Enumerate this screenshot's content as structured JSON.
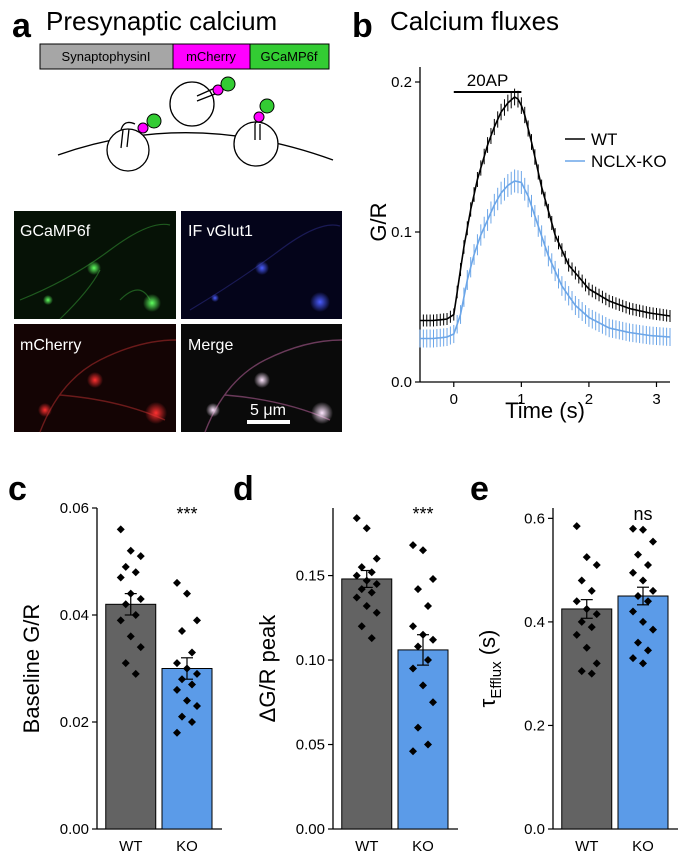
{
  "colors": {
    "wt": "#000000",
    "ko": "#6ca6e8",
    "wt_bar": "#636363",
    "ko_bar": "#5b9be8",
    "synaptophysin": "#a6a6a6",
    "mcherry": "#ff00ff",
    "gcamp": "#33cc33"
  },
  "panel_a": {
    "letter": "a",
    "title": "Presynaptic calcium",
    "construct": [
      "SynaptophysinI",
      "mCherry",
      "GCaMP6f"
    ],
    "micrographs": {
      "labels": [
        "GCaMP6f",
        "IF vGlut1",
        "mCherry",
        "Merge"
      ],
      "scale_bar": "5 μm"
    }
  },
  "chart_data": [
    {
      "type": "line",
      "panel": "b",
      "title": "Calcium fluxes",
      "xlabel": "Time (s)",
      "ylabel": "G/R",
      "xlim": [
        -0.5,
        3.2
      ],
      "ylim": [
        0,
        0.21
      ],
      "xticks": [
        0,
        1,
        2,
        3
      ],
      "yticks": [
        0.0,
        0.1,
        0.2
      ],
      "ytick_labels": [
        "0.0",
        "0.1",
        "0.2"
      ],
      "annotation": {
        "label": "20AP",
        "x_start": 0,
        "x_end": 1
      },
      "legend": [
        "WT",
        "NCLX-KO"
      ],
      "series": [
        {
          "name": "WT",
          "x": [
            -0.5,
            -0.3,
            -0.1,
            0.0,
            0.05,
            0.15,
            0.25,
            0.35,
            0.5,
            0.6,
            0.7,
            0.8,
            0.9,
            0.97,
            1.05,
            1.15,
            1.3,
            1.5,
            1.7,
            2.0,
            2.3,
            2.6,
            2.9,
            3.2
          ],
          "y": [
            0.041,
            0.041,
            0.042,
            0.045,
            0.06,
            0.09,
            0.115,
            0.135,
            0.158,
            0.17,
            0.18,
            0.186,
            0.19,
            0.188,
            0.178,
            0.16,
            0.13,
            0.098,
            0.078,
            0.062,
            0.054,
            0.049,
            0.046,
            0.044
          ],
          "err": 0.004
        },
        {
          "name": "NCLX-KO",
          "x": [
            -0.5,
            -0.3,
            -0.1,
            0.0,
            0.1,
            0.2,
            0.3,
            0.4,
            0.5,
            0.6,
            0.7,
            0.8,
            0.9,
            1.0,
            1.1,
            1.25,
            1.4,
            1.6,
            1.8,
            2.0,
            2.3,
            2.6,
            2.9,
            3.2
          ],
          "y": [
            0.029,
            0.029,
            0.03,
            0.032,
            0.045,
            0.068,
            0.085,
            0.098,
            0.108,
            0.118,
            0.126,
            0.131,
            0.134,
            0.133,
            0.124,
            0.104,
            0.084,
            0.064,
            0.051,
            0.043,
            0.036,
            0.033,
            0.031,
            0.03
          ],
          "err": 0.006
        }
      ]
    },
    {
      "type": "bar",
      "panel": "c",
      "ylabel": "Baseline G/R",
      "categories": [
        "WT",
        "KO"
      ],
      "values": [
        0.042,
        0.03
      ],
      "errors": [
        0.002,
        0.002
      ],
      "ylim": [
        0,
        0.06
      ],
      "yticks": [
        0.0,
        0.02,
        0.04,
        0.06
      ],
      "ytick_labels": [
        "0.00",
        "0.02",
        "0.04",
        "0.06"
      ],
      "significance": "***",
      "points": [
        [
          0.056,
          0.052,
          0.051,
          0.049,
          0.048,
          0.047,
          0.044,
          0.043,
          0.042,
          0.04,
          0.039,
          0.036,
          0.034,
          0.031,
          0.029
        ],
        [
          0.046,
          0.044,
          0.039,
          0.037,
          0.033,
          0.031,
          0.03,
          0.029,
          0.028,
          0.027,
          0.026,
          0.024,
          0.023,
          0.021,
          0.02,
          0.018
        ]
      ]
    },
    {
      "type": "bar",
      "panel": "d",
      "ylabel": "ΔG/R peak",
      "categories": [
        "WT",
        "KO"
      ],
      "values": [
        0.148,
        0.106
      ],
      "errors": [
        0.005,
        0.009
      ],
      "ylim": [
        0,
        0.19
      ],
      "yticks": [
        0.0,
        0.05,
        0.1,
        0.15
      ],
      "ytick_labels": [
        "0.00",
        "0.05",
        "0.10",
        "0.15"
      ],
      "significance": "***",
      "points": [
        [
          0.184,
          0.178,
          0.16,
          0.155,
          0.152,
          0.15,
          0.147,
          0.145,
          0.142,
          0.14,
          0.137,
          0.132,
          0.128,
          0.12,
          0.113
        ],
        [
          0.168,
          0.165,
          0.148,
          0.142,
          0.132,
          0.12,
          0.115,
          0.112,
          0.108,
          0.1,
          0.095,
          0.085,
          0.075,
          0.06,
          0.05,
          0.046
        ]
      ]
    },
    {
      "type": "bar",
      "panel": "e",
      "ylabel": "τ",
      "ylabel_sub": "Efflux",
      "ylabel_unit": " (s)",
      "categories": [
        "WT",
        "KO"
      ],
      "values": [
        0.425,
        0.45
      ],
      "errors": [
        0.018,
        0.017
      ],
      "ylim": [
        0,
        0.62
      ],
      "yticks": [
        0.0,
        0.2,
        0.4,
        0.6
      ],
      "ytick_labels": [
        "0.0",
        "0.2",
        "0.4",
        "0.6"
      ],
      "significance": "ns",
      "points": [
        [
          0.585,
          0.525,
          0.51,
          0.48,
          0.46,
          0.44,
          0.425,
          0.415,
          0.4,
          0.39,
          0.375,
          0.35,
          0.32,
          0.305,
          0.3
        ],
        [
          0.58,
          0.578,
          0.555,
          0.53,
          0.51,
          0.495,
          0.48,
          0.46,
          0.45,
          0.44,
          0.42,
          0.4,
          0.385,
          0.36,
          0.345,
          0.33,
          0.32
        ]
      ]
    }
  ]
}
